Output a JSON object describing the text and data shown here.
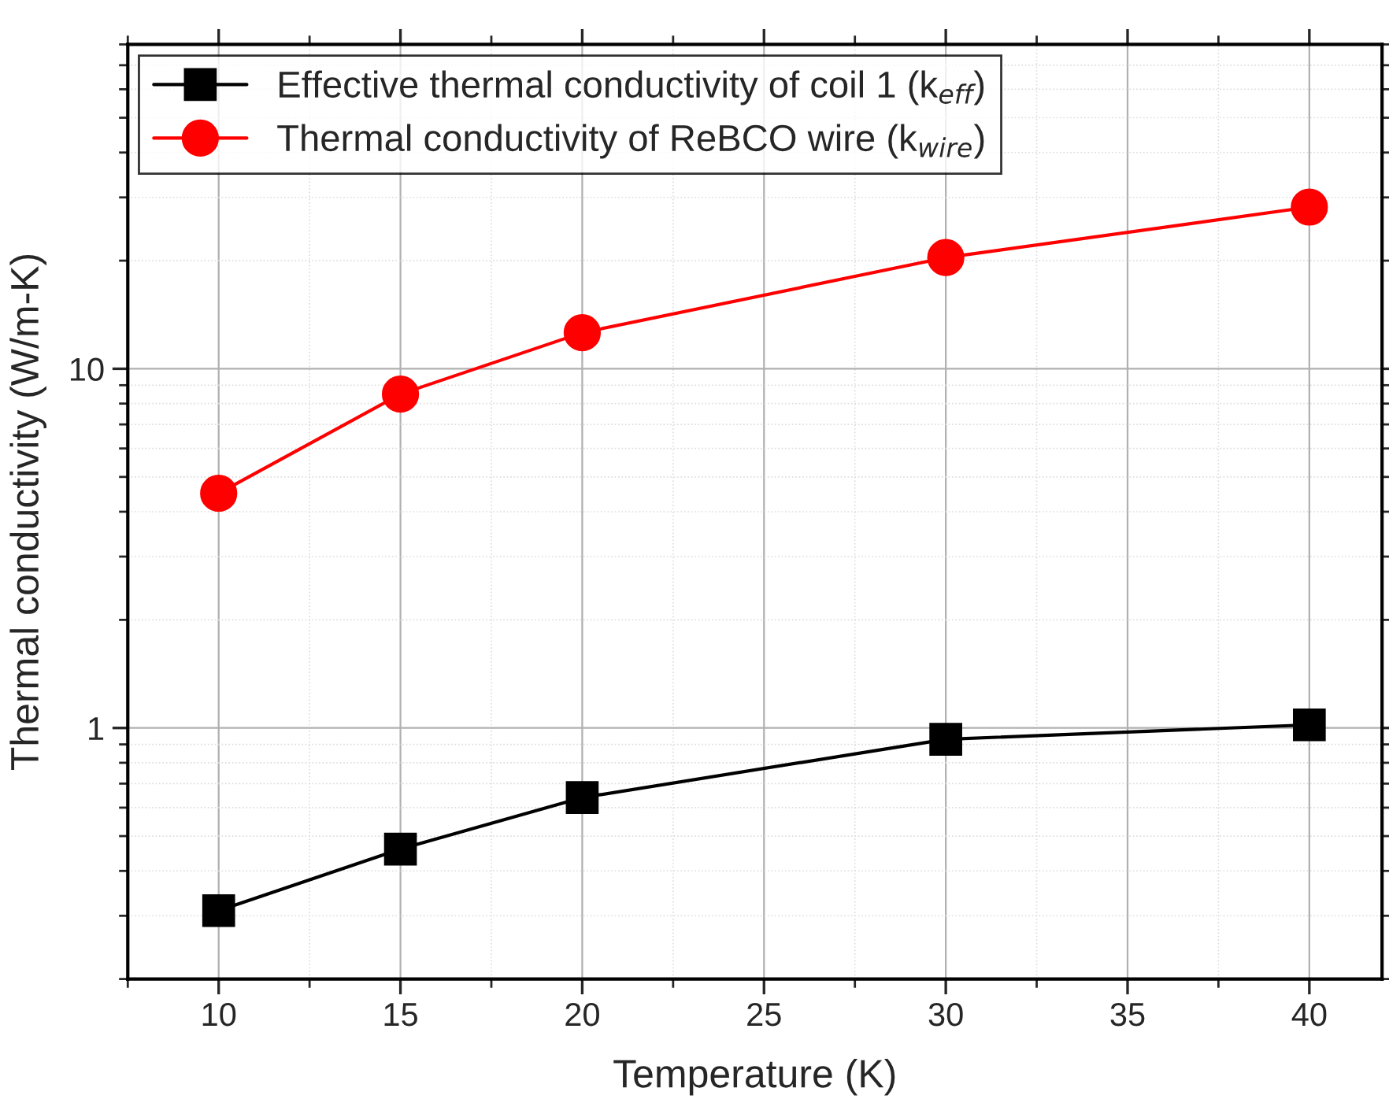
{
  "chart_data": {
    "type": "line",
    "xlabel": "Temperature (K)",
    "ylabel": "Thermal conductivity (W/m-K)",
    "x": [
      10,
      15,
      20,
      30,
      40
    ],
    "series": [
      {
        "name": "Effective thermal conductivity of coil 1 (k$_{eff}$)",
        "color": "#000000",
        "marker": "square",
        "values": [
          0.31,
          0.46,
          0.64,
          0.93,
          1.02
        ]
      },
      {
        "name": "Thermal conductivity of ReBCO wire (k$_{wire}$)",
        "color": "#ff0000",
        "marker": "circle",
        "values": [
          4.5,
          8.5,
          12.6,
          20.4,
          28.2
        ]
      }
    ],
    "log": "y",
    "xlim": [
      7.5,
      42
    ],
    "xticks": [
      10,
      15,
      20,
      25,
      30,
      35,
      40
    ],
    "ylim": [
      0.2,
      80
    ],
    "yticks": [
      1,
      10
    ],
    "grid": true,
    "legend": "top left",
    "line_style": "solid"
  }
}
